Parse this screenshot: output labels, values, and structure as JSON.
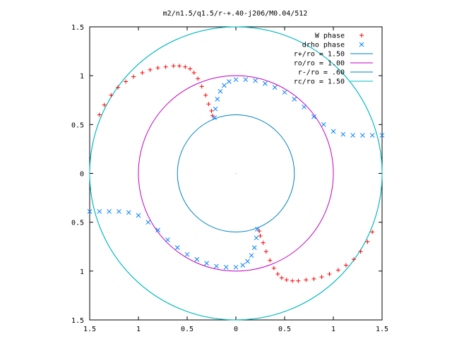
{
  "chart_data": {
    "type": "scatter",
    "title": "m2/n1.5/q1.5/r-+.40-j206/M0.04/512",
    "xlim": [
      -1.5,
      1.5
    ],
    "ylim": [
      -1.5,
      1.5
    ],
    "xticks": [
      "1.5",
      "1",
      "0.5",
      "0",
      "0.5",
      "1",
      "1.5"
    ],
    "yticks": [
      "1.5",
      "1",
      "0.5",
      "0",
      "0.5",
      "1",
      "1.5"
    ],
    "legend_position": "top-right",
    "grid": false,
    "series": [
      {
        "name": "W phase",
        "marker": "+",
        "color": "#ff0000",
        "points": [
          [
            -1.4,
            0.6
          ],
          [
            -1.35,
            0.7
          ],
          [
            -1.28,
            0.8
          ],
          [
            -1.21,
            0.88
          ],
          [
            -1.13,
            0.94
          ],
          [
            -1.05,
            0.99
          ],
          [
            -0.96,
            1.03
          ],
          [
            -0.88,
            1.06
          ],
          [
            -0.8,
            1.08
          ],
          [
            -0.72,
            1.09
          ],
          [
            -0.64,
            1.1
          ],
          [
            -0.58,
            1.1
          ],
          [
            -0.52,
            1.09
          ],
          [
            -0.47,
            1.07
          ],
          [
            -0.43,
            1.03
          ],
          [
            -0.39,
            0.97
          ],
          [
            -0.35,
            0.89
          ],
          [
            -0.31,
            0.8
          ],
          [
            -0.28,
            0.71
          ],
          [
            -0.25,
            0.64
          ],
          [
            -0.24,
            0.59
          ],
          [
            1.4,
            -0.6
          ],
          [
            1.35,
            -0.7
          ],
          [
            1.28,
            -0.8
          ],
          [
            1.21,
            -0.88
          ],
          [
            1.13,
            -0.94
          ],
          [
            1.05,
            -0.99
          ],
          [
            0.96,
            -1.03
          ],
          [
            0.88,
            -1.06
          ],
          [
            0.8,
            -1.08
          ],
          [
            0.72,
            -1.09
          ],
          [
            0.64,
            -1.1
          ],
          [
            0.58,
            -1.1
          ],
          [
            0.52,
            -1.09
          ],
          [
            0.47,
            -1.07
          ],
          [
            0.43,
            -1.03
          ],
          [
            0.39,
            -0.97
          ],
          [
            0.35,
            -0.89
          ],
          [
            0.31,
            -0.8
          ],
          [
            0.28,
            -0.71
          ],
          [
            0.25,
            -0.64
          ],
          [
            0.24,
            -0.59
          ]
        ]
      },
      {
        "name": "drho phase",
        "marker": "x",
        "color": "#0080ff",
        "points": [
          [
            -0.22,
            0.57
          ],
          [
            -0.21,
            0.66
          ],
          [
            -0.19,
            0.76
          ],
          [
            -0.16,
            0.84
          ],
          [
            -0.12,
            0.9
          ],
          [
            -0.07,
            0.94
          ],
          [
            0.0,
            0.96
          ],
          [
            0.1,
            0.96
          ],
          [
            0.2,
            0.95
          ],
          [
            0.3,
            0.92
          ],
          [
            0.4,
            0.88
          ],
          [
            0.5,
            0.83
          ],
          [
            0.6,
            0.76
          ],
          [
            0.7,
            0.68
          ],
          [
            0.8,
            0.58
          ],
          [
            0.9,
            0.5
          ],
          [
            1.0,
            0.43
          ],
          [
            1.1,
            0.4
          ],
          [
            1.2,
            0.39
          ],
          [
            1.3,
            0.39
          ],
          [
            1.4,
            0.39
          ],
          [
            1.5,
            0.39
          ],
          [
            0.22,
            -0.57
          ],
          [
            0.21,
            -0.66
          ],
          [
            0.19,
            -0.76
          ],
          [
            0.16,
            -0.84
          ],
          [
            0.12,
            -0.9
          ],
          [
            0.07,
            -0.94
          ],
          [
            0.0,
            -0.96
          ],
          [
            -0.1,
            -0.96
          ],
          [
            -0.2,
            -0.95
          ],
          [
            -0.3,
            -0.92
          ],
          [
            -0.4,
            -0.88
          ],
          [
            -0.5,
            -0.83
          ],
          [
            -0.6,
            -0.76
          ],
          [
            -0.7,
            -0.68
          ],
          [
            -0.8,
            -0.58
          ],
          [
            -0.9,
            -0.5
          ],
          [
            -1.0,
            -0.43
          ],
          [
            -1.1,
            -0.4
          ],
          [
            -1.2,
            -0.39
          ],
          [
            -1.3,
            -0.39
          ],
          [
            -1.4,
            -0.39
          ],
          [
            -1.5,
            -0.39
          ]
        ]
      }
    ],
    "circles": [
      {
        "name": "r+/ro = 1.50",
        "radius": 1.5,
        "color": "#0080c0"
      },
      {
        "name": "ro/ro = 1.00",
        "radius": 1.0,
        "color": "#c000c0"
      },
      {
        "name": "r-/ro = .60",
        "radius": 0.6,
        "color": "#0080c0"
      },
      {
        "name": "rc/ro = 1.50",
        "radius": 1.5,
        "color": "#00c0c0"
      }
    ]
  }
}
